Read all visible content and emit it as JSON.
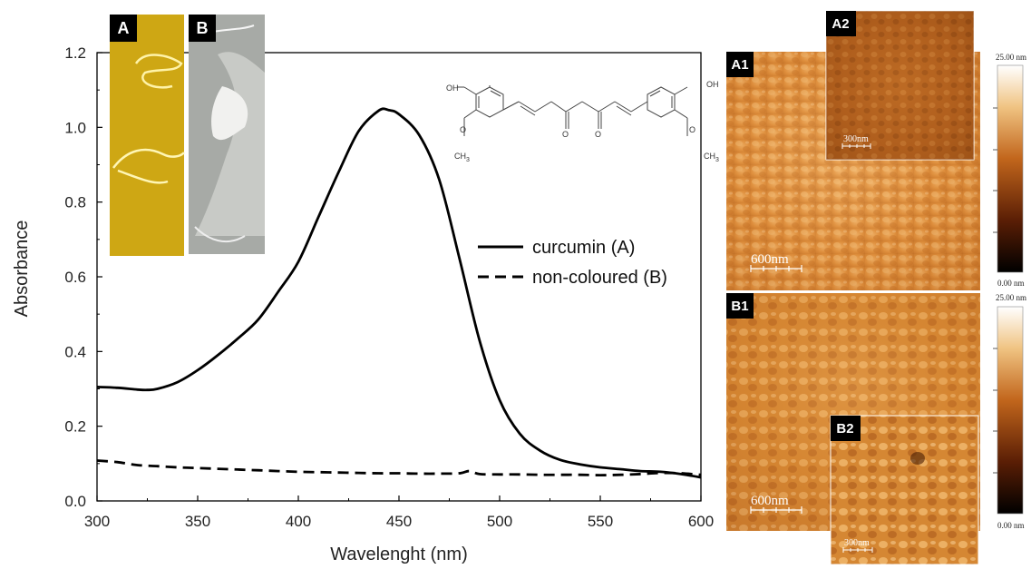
{
  "chart_data": {
    "type": "line",
    "xlabel": "Wavelenght (nm)",
    "ylabel": "Absorbance",
    "xlim": [
      300,
      600
    ],
    "ylim": [
      0.0,
      1.2
    ],
    "xticks": [
      "300",
      "350",
      "400",
      "450",
      "500",
      "550",
      "600"
    ],
    "yticks": [
      "0.0",
      "0.2",
      "0.4",
      "0.6",
      "0.8",
      "1.0",
      "1.2"
    ],
    "legend_position": "center-right",
    "series": [
      {
        "name": "curcumin (A)",
        "style": "solid",
        "color": "#000000",
        "points": [
          [
            300,
            0.305
          ],
          [
            310,
            0.303
          ],
          [
            320,
            0.298
          ],
          [
            325,
            0.297
          ],
          [
            330,
            0.3
          ],
          [
            340,
            0.318
          ],
          [
            350,
            0.35
          ],
          [
            360,
            0.39
          ],
          [
            370,
            0.435
          ],
          [
            380,
            0.485
          ],
          [
            390,
            0.56
          ],
          [
            400,
            0.64
          ],
          [
            410,
            0.76
          ],
          [
            420,
            0.88
          ],
          [
            430,
            0.99
          ],
          [
            440,
            1.045
          ],
          [
            445,
            1.046
          ],
          [
            450,
            1.035
          ],
          [
            460,
            0.98
          ],
          [
            470,
            0.86
          ],
          [
            480,
            0.65
          ],
          [
            490,
            0.43
          ],
          [
            500,
            0.27
          ],
          [
            510,
            0.18
          ],
          [
            520,
            0.135
          ],
          [
            530,
            0.11
          ],
          [
            540,
            0.098
          ],
          [
            550,
            0.09
          ],
          [
            560,
            0.085
          ],
          [
            570,
            0.08
          ],
          [
            580,
            0.078
          ],
          [
            590,
            0.072
          ],
          [
            600,
            0.063
          ]
        ]
      },
      {
        "name": "non-coloured (B)",
        "style": "dashed",
        "color": "#000000",
        "points": [
          [
            300,
            0.108
          ],
          [
            310,
            0.104
          ],
          [
            320,
            0.096
          ],
          [
            330,
            0.093
          ],
          [
            340,
            0.09
          ],
          [
            350,
            0.088
          ],
          [
            360,
            0.086
          ],
          [
            370,
            0.084
          ],
          [
            380,
            0.082
          ],
          [
            390,
            0.08
          ],
          [
            400,
            0.078
          ],
          [
            410,
            0.077
          ],
          [
            420,
            0.076
          ],
          [
            430,
            0.075
          ],
          [
            440,
            0.074
          ],
          [
            450,
            0.074
          ],
          [
            460,
            0.073
          ],
          [
            470,
            0.073
          ],
          [
            480,
            0.074
          ],
          [
            485,
            0.08
          ],
          [
            490,
            0.072
          ],
          [
            500,
            0.071
          ],
          [
            510,
            0.071
          ],
          [
            520,
            0.07
          ],
          [
            530,
            0.07
          ],
          [
            540,
            0.07
          ],
          [
            550,
            0.069
          ],
          [
            560,
            0.07
          ],
          [
            570,
            0.072
          ],
          [
            580,
            0.075
          ],
          [
            590,
            0.074
          ],
          [
            600,
            0.07
          ]
        ]
      }
    ]
  },
  "photos": {
    "a_label": "A",
    "b_label": "B"
  },
  "afm": {
    "a1_label": "A1",
    "a2_label": "A2",
    "b1_label": "B1",
    "b2_label": "B2",
    "scale_large": "600nm",
    "scale_small": "300nm",
    "colorbar_max": "25.00 nm",
    "colorbar_min": "0.00 nm"
  },
  "structure": {
    "oh": "OH",
    "ch3": "CH",
    "ch3_sub": "3",
    "o": "O"
  },
  "colors": {
    "photo_a_bg": "#c9a20a",
    "photo_b_bg": "#a7aaa6",
    "afm_orange": "#d0802c"
  }
}
